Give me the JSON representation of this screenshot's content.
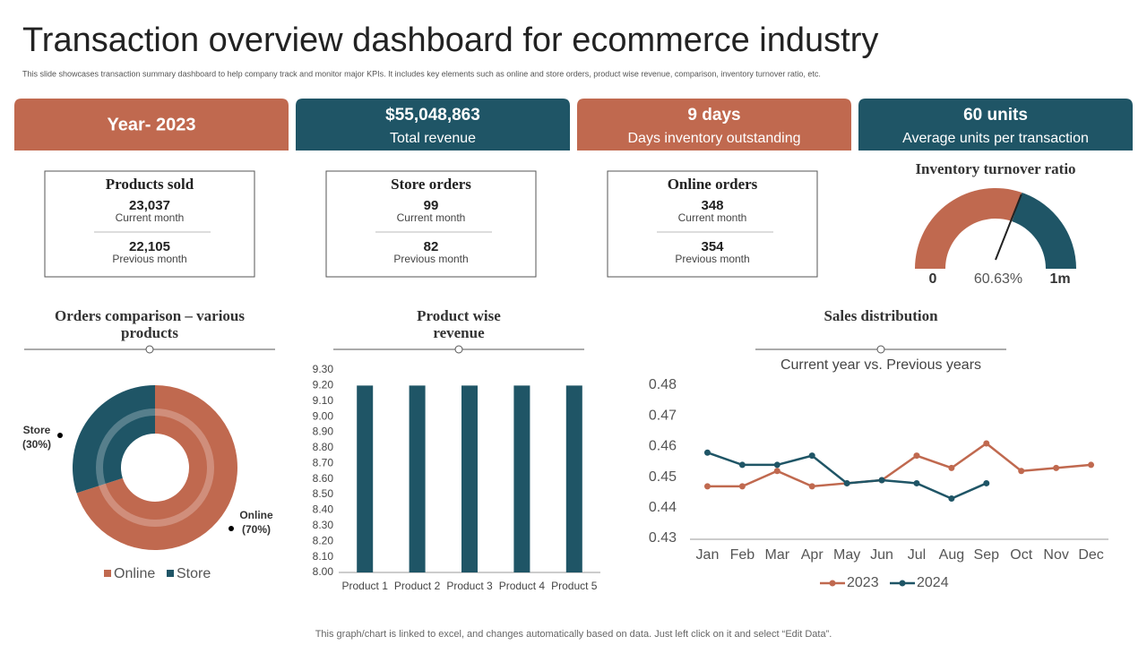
{
  "title": "Transaction overview dashboard for ecommerce industry",
  "subtitle": "This slide showcases transaction summary dashboard to help company track and monitor major KPIs. It includes key elements such as online and store orders, product wise revenue, comparison, inventory turnover ratio, etc.",
  "kpis": [
    {
      "label": "Year- 2023"
    },
    {
      "value": "$55,048,863",
      "label": "Total revenue"
    },
    {
      "value": "9 days",
      "label": "Days inventory outstanding"
    },
    {
      "value": "60 units",
      "label": "Average units per transaction"
    }
  ],
  "stats": [
    {
      "title": "Products sold",
      "current": "23,037",
      "current_label": "Current month",
      "previous": "22,105",
      "previous_label": "Previous month"
    },
    {
      "title": "Store orders",
      "current": "99",
      "current_label": "Current month",
      "previous": "82",
      "previous_label": "Previous month"
    },
    {
      "title": "Online orders",
      "current": "348",
      "current_label": "Current month",
      "previous": "354",
      "previous_label": "Previous month"
    }
  ],
  "footer": "This graph/chart is linked to excel, and changes automatically based on data. Just left click on it and select “Edit Data”.",
  "chart_data": [
    {
      "type": "gauge",
      "title": "Inventory turnover ratio",
      "values": [
        60.63
      ],
      "value_labels": [
        "60.63%"
      ],
      "ticks": [
        {
          "value": 0,
          "label": "0"
        },
        {
          "value": 100,
          "label": "1m"
        }
      ],
      "colors": [
        "#c0694f",
        "#1f5566"
      ]
    },
    {
      "type": "pie",
      "title": "Orders comparison – various products",
      "categories": [
        "Online",
        "Store"
      ],
      "values": [
        70,
        30
      ],
      "value_labels": [
        "(70%)",
        "(30%)"
      ],
      "colors": [
        "#c0694f",
        "#1f5566"
      ],
      "legend": "bottom"
    },
    {
      "type": "bar",
      "title": "Product wise revenue",
      "categories": [
        "Product 1",
        "Product 2",
        "Product 3",
        "Product 4",
        "Product 5"
      ],
      "values": [
        9.2,
        9.2,
        9.2,
        9.2,
        9.2
      ],
      "color": "#1f5566",
      "ylim": [
        8.0,
        9.3
      ],
      "yticks": [
        {
          "value": 8.0,
          "label": "8.00"
        },
        {
          "value": 8.1,
          "label": "8.10"
        },
        {
          "value": 8.2,
          "label": "8.20"
        },
        {
          "value": 8.3,
          "label": "8.30"
        },
        {
          "value": 8.4,
          "label": "8.40"
        },
        {
          "value": 8.5,
          "label": "8.50"
        },
        {
          "value": 8.6,
          "label": "8.60"
        },
        {
          "value": 8.7,
          "label": "8.70"
        },
        {
          "value": 8.8,
          "label": "8.80"
        },
        {
          "value": 8.9,
          "label": "8.90"
        },
        {
          "value": 9.0,
          "label": "9.00"
        },
        {
          "value": 9.1,
          "label": "9.10"
        },
        {
          "value": 9.2,
          "label": "9.20"
        },
        {
          "value": 9.3,
          "label": "9.30"
        }
      ]
    },
    {
      "type": "line",
      "title": "Sales distribution",
      "subtitle": "Current year vs. Previous years",
      "categories": [
        "Jan",
        "Feb",
        "Mar",
        "Apr",
        "May",
        "Jun",
        "Jul",
        "Aug",
        "Sep",
        "Oct",
        "Nov",
        "Dec"
      ],
      "series": [
        {
          "name": "2023",
          "color": "#c0694f",
          "values": [
            0.447,
            0.447,
            0.452,
            0.447,
            0.448,
            0.449,
            0.457,
            0.453,
            0.461,
            0.452,
            0.453,
            0.454
          ]
        },
        {
          "name": "2024",
          "color": "#1f5566",
          "values": [
            0.458,
            0.454,
            0.454,
            0.457,
            0.448,
            0.449,
            0.448,
            0.443,
            0.448,
            null,
            null,
            null
          ]
        }
      ],
      "ylim": [
        0.43,
        0.48
      ],
      "yticks": [
        0.43,
        0.44,
        0.45,
        0.46,
        0.47,
        0.48
      ],
      "legend": "bottom"
    }
  ]
}
